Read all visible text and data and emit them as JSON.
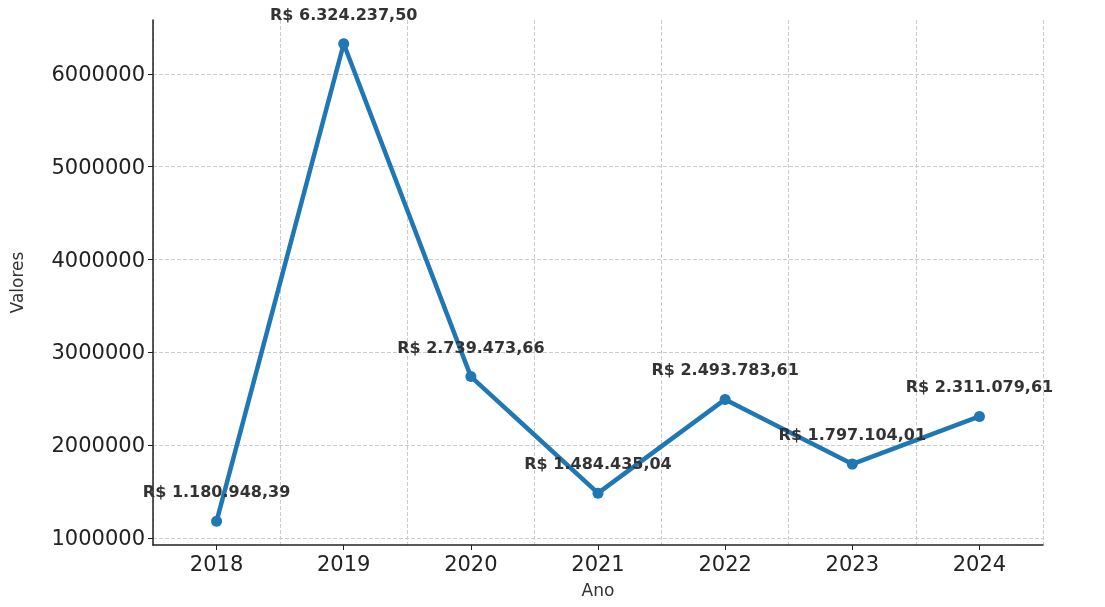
{
  "chart_data": {
    "type": "line",
    "xlabel": "Ano",
    "ylabel": "Valores",
    "categories": [
      "2018",
      "2019",
      "2020",
      "2021",
      "2022",
      "2023",
      "2024"
    ],
    "series": [
      {
        "color": "#1f77b4",
        "values": [
          1180948.39,
          6324237.5,
          2739473.66,
          1484435.04,
          2493783.61,
          1797104.01,
          2311079.61
        ],
        "value_labels": [
          "R$ 1.180.948,39",
          "R$ 6.324.237,50",
          "R$ 2.739.473,66",
          "R$ 1.484.435,04",
          "R$ 2.493.783,61",
          "R$ 1.797.104,01",
          "R$ 2.311.079,61"
        ]
      }
    ],
    "ylim": [
      926000,
      6580000
    ],
    "yticks": [
      1000000,
      2000000,
      3000000,
      4000000,
      5000000,
      6000000
    ],
    "grid": true,
    "marker": "circle",
    "line_style": "solid"
  }
}
